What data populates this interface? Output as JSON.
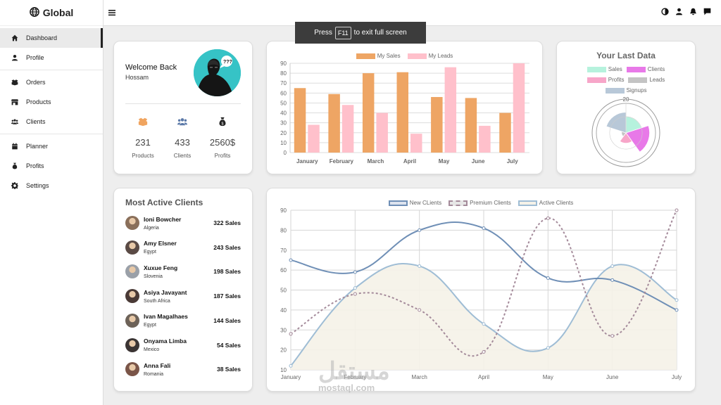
{
  "brand": {
    "name": "Global",
    "icon": "globe-icon"
  },
  "sidebar": {
    "groups": [
      [
        {
          "label": "Dashboard",
          "icon": "home-icon",
          "active": true
        },
        {
          "label": "Profile",
          "icon": "user-icon"
        }
      ],
      [
        {
          "label": "Orders",
          "icon": "box-icon"
        },
        {
          "label": "Products",
          "icon": "store-icon"
        },
        {
          "label": "Clients",
          "icon": "users-icon"
        }
      ],
      [
        {
          "label": "Planner",
          "icon": "calendar-icon"
        },
        {
          "label": "Profits",
          "icon": "money-bag-icon"
        },
        {
          "label": "Settings",
          "icon": "gear-icon"
        }
      ]
    ]
  },
  "topbar": {
    "icons": [
      "contrast-icon",
      "user-icon",
      "bell-icon",
      "chat-icon"
    ]
  },
  "overlay": {
    "press": "Press",
    "key": "F11",
    "rest": "to exit full screen"
  },
  "welcome": {
    "title": "Welcome Back",
    "name": "Hossam",
    "stats": [
      {
        "value": "231",
        "label": "Products",
        "icon": "box-icon",
        "color": "#f0a45f"
      },
      {
        "value": "433",
        "label": "Clients",
        "icon": "users-icon",
        "color": "#5b79a8"
      },
      {
        "value": "2560$",
        "label": "Profits",
        "icon": "money-bag-icon",
        "color": "#333333"
      }
    ]
  },
  "clients": {
    "title": "Most Active Clients",
    "rows": [
      {
        "name": "Ioni Bowcher",
        "country": "Algeria",
        "sales": "322 Sales",
        "color": "#8a6f5a"
      },
      {
        "name": "Amy Elsner",
        "country": "Egypt",
        "sales": "243 Sales",
        "color": "#5a4a45"
      },
      {
        "name": "Xuxue Feng",
        "country": "Slovenia",
        "sales": "198 Sales",
        "color": "#9aa0a8"
      },
      {
        "name": "Asiya Javayant",
        "country": "South Africa",
        "sales": "187 Sales",
        "color": "#4a3a36"
      },
      {
        "name": "Ivan Magalhaes",
        "country": "Egypt",
        "sales": "144 Sales",
        "color": "#6d6258"
      },
      {
        "name": "Onyama Limba",
        "country": "Mexico",
        "sales": "54 Sales",
        "color": "#3b3433"
      },
      {
        "name": "Anna Fali",
        "country": "Romania",
        "sales": "38 Sales",
        "color": "#7a5548"
      }
    ]
  },
  "polar_title": "Your Last Data",
  "watermark": {
    "ar": "مستقل",
    "en": "mostaql.com"
  },
  "chart_data": [
    {
      "type": "bar",
      "categories": [
        "January",
        "February",
        "March",
        "April",
        "May",
        "June",
        "July"
      ],
      "series": [
        {
          "name": "My Sales",
          "values": [
            65,
            59,
            80,
            81,
            56,
            55,
            40
          ],
          "color": "#eea564"
        },
        {
          "name": "My Leads",
          "values": [
            28,
            48,
            40,
            19,
            86,
            27,
            90
          ],
          "color": "#ffc0cb"
        }
      ],
      "ylim": [
        0,
        90
      ],
      "yticks": [
        0,
        10,
        20,
        30,
        40,
        50,
        60,
        70,
        80,
        90
      ],
      "legend": "top"
    },
    {
      "type": "pie",
      "subtype": "polar-area",
      "categories": [
        "Sales",
        "Clients",
        "Profits",
        "Leads",
        "Signups"
      ],
      "values": [
        11,
        16,
        7,
        3,
        14
      ],
      "colors": [
        "#b6f2dd",
        "#e879e8",
        "#f7a6c9",
        "#c4c4c4",
        "#b8c8d8"
      ],
      "max": 20,
      "tick_label": "20",
      "legend": "top"
    },
    {
      "type": "line",
      "categories": [
        "January",
        "February",
        "March",
        "April",
        "May",
        "June",
        "July"
      ],
      "series": [
        {
          "name": "New CLients",
          "values": [
            65,
            59,
            80,
            81,
            56,
            55,
            40
          ],
          "color": "#6f8fb6",
          "style": "solid"
        },
        {
          "name": "Premium Clients",
          "values": [
            28,
            48,
            40,
            19,
            86,
            27,
            90
          ],
          "color": "#a48a9a",
          "style": "dashed"
        },
        {
          "name": "Active Clients",
          "values": [
            12,
            51,
            62,
            33,
            21,
            62,
            45
          ],
          "color": "#9fbdd5",
          "style": "filled",
          "fill": "#f5f2e8"
        }
      ],
      "ylim": [
        10,
        90
      ],
      "yticks": [
        10,
        20,
        30,
        40,
        50,
        60,
        70,
        80,
        90
      ],
      "grid": true,
      "legend": "top"
    }
  ]
}
